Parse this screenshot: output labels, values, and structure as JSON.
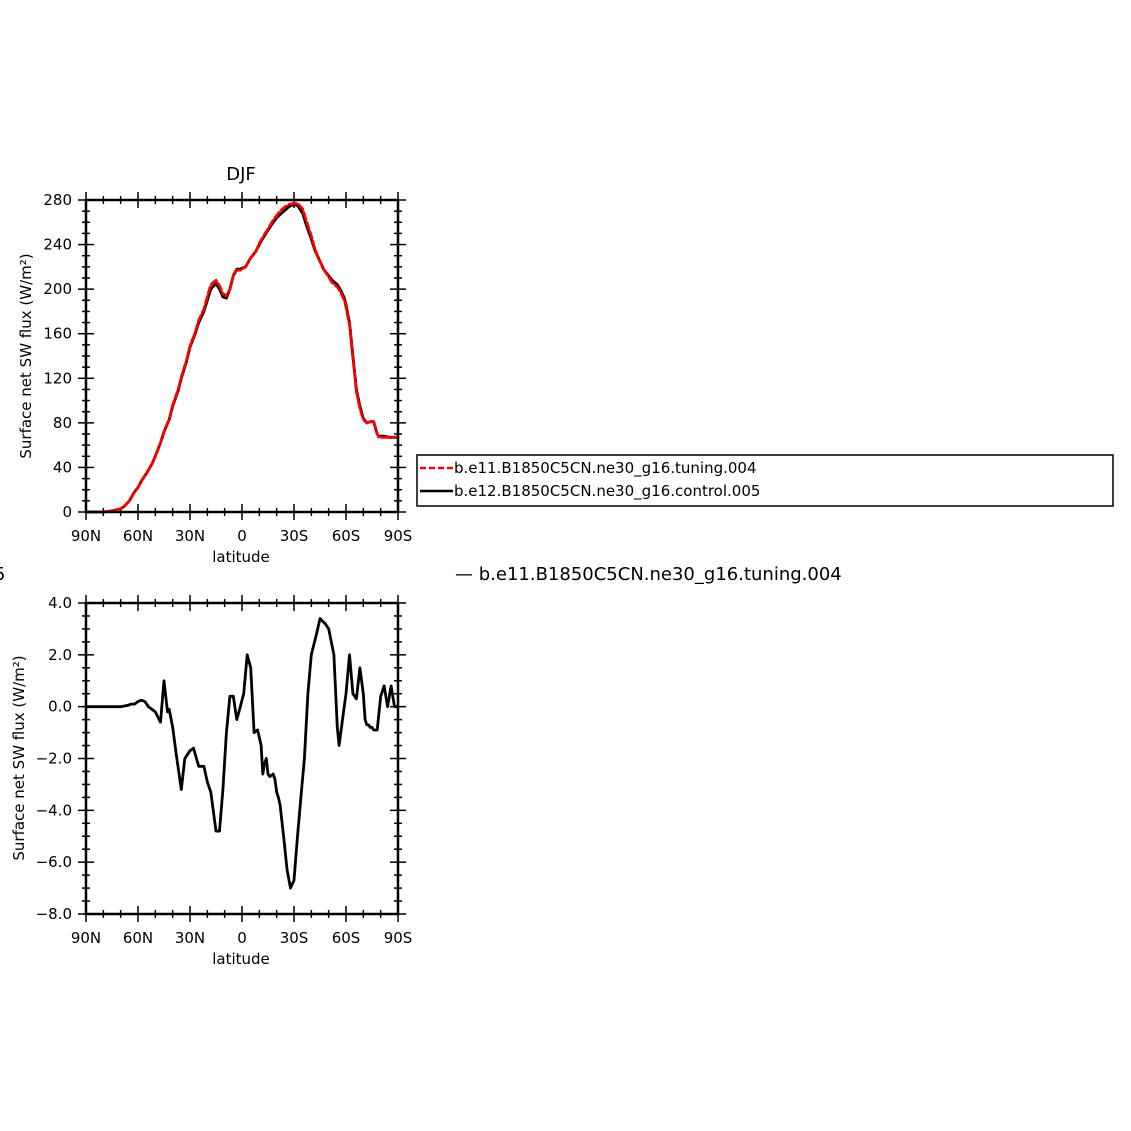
{
  "chart_data": [
    {
      "type": "line",
      "title": "DJF",
      "xlabel": "latitude",
      "ylabel": "Surface net SW flux (W/m²)",
      "xlim": [
        90,
        -90
      ],
      "ylim": [
        0,
        280
      ],
      "xticks": [
        90,
        60,
        30,
        0,
        -30,
        -60,
        -90
      ],
      "xtick_labels": [
        "90N",
        "60N",
        "30N",
        "0",
        "30S",
        "60S",
        "90S"
      ],
      "yticks": [
        0,
        40,
        80,
        120,
        160,
        200,
        240,
        280
      ],
      "ytick_labels": [
        "0",
        "40",
        "80",
        "120",
        "160",
        "200",
        "240",
        "280"
      ],
      "legend": {
        "placement": "right",
        "entries": [
          "b.e11.B1850C5CN.ne30_g16.tuning.004",
          "b.e12.B1850C5CN.ne30_g16.control.005"
        ]
      },
      "series": [
        {
          "name": "b.e12.B1850C5CN.ne30_g16.control.005",
          "color": "#000000",
          "style": "solid",
          "x": [
            90,
            80,
            75,
            70,
            68,
            65,
            62,
            60,
            58,
            55,
            52,
            50,
            47,
            45,
            42,
            40,
            37,
            35,
            32,
            30,
            27,
            25,
            22,
            20,
            18,
            15,
            13,
            11,
            9,
            7,
            5,
            3,
            1,
            -2,
            -5,
            -8,
            -10,
            -13,
            -15,
            -18,
            -20,
            -22,
            -25,
            -27,
            -30,
            -32,
            -35,
            -37,
            -40,
            -42,
            -45,
            -47,
            -50,
            -52,
            -55,
            -57,
            -59,
            -60,
            -61,
            -62,
            -63,
            -64,
            -65,
            -66,
            -68,
            -70,
            -72,
            -74,
            -76,
            -78,
            -79,
            -80,
            -82,
            -85,
            -88,
            -90
          ],
          "y": [
            0,
            0,
            1,
            3,
            5,
            10,
            18,
            22,
            28,
            35,
            43,
            50,
            62,
            72,
            83,
            95,
            108,
            120,
            135,
            148,
            160,
            170,
            180,
            190,
            200,
            205,
            200,
            193,
            192,
            200,
            212,
            218,
            218,
            220,
            228,
            234,
            240,
            248,
            253,
            260,
            264,
            267,
            271,
            274,
            276,
            275,
            268,
            258,
            245,
            235,
            225,
            218,
            212,
            208,
            204,
            199,
            192,
            186,
            178,
            170,
            155,
            140,
            125,
            110,
            95,
            84,
            80,
            81,
            81,
            70,
            68,
            68,
            68,
            67,
            67,
            67
          ]
        },
        {
          "name": "b.e11.B1850C5CN.ne30_g16.tuning.004",
          "color": "#ff0000",
          "style": "dashed",
          "x": [
            90,
            80,
            75,
            70,
            68,
            65,
            62,
            60,
            58,
            55,
            52,
            50,
            47,
            45,
            42,
            40,
            37,
            35,
            32,
            30,
            27,
            25,
            22,
            20,
            18,
            15,
            13,
            11,
            9,
            7,
            5,
            3,
            1,
            -2,
            -5,
            -8,
            -10,
            -13,
            -15,
            -18,
            -20,
            -22,
            -25,
            -27,
            -30,
            -32,
            -35,
            -37,
            -40,
            -42,
            -45,
            -47,
            -50,
            -52,
            -55,
            -57,
            -59,
            -60,
            -61,
            -62,
            -63,
            -64,
            -65,
            -66,
            -68,
            -70,
            -72,
            -74,
            -76,
            -78,
            -79,
            -80,
            -82,
            -85,
            -88,
            -90
          ],
          "y": [
            0,
            0,
            1,
            3,
            5,
            10,
            18,
            22,
            28,
            35,
            43,
            50,
            62,
            72,
            83,
            96,
            109,
            121,
            136,
            149,
            161,
            172,
            182,
            193,
            204,
            208,
            203,
            196,
            194,
            200,
            212,
            217,
            217,
            220,
            228,
            234,
            241,
            249,
            254,
            262,
            266,
            270,
            274,
            276,
            277,
            277,
            272,
            262,
            248,
            236,
            225,
            218,
            211,
            206,
            202,
            197,
            190,
            184,
            176,
            168,
            153,
            138,
            123,
            108,
            93,
            83,
            80,
            81,
            81,
            70,
            67,
            67,
            67,
            67,
            67,
            67
          ]
        }
      ]
    },
    {
      "type": "line",
      "subtitle": "— b.e11.B1850C5CN.ne30_g16.tuning.004",
      "left_fragment": "5",
      "xlabel": "latitude",
      "ylabel": "Surface net SW flux (W/m²)",
      "xlim": [
        90,
        -90
      ],
      "ylim": [
        -8,
        4
      ],
      "xticks": [
        90,
        60,
        30,
        0,
        -30,
        -60,
        -90
      ],
      "xtick_labels": [
        "90N",
        "60N",
        "30N",
        "0",
        "30S",
        "60S",
        "90S"
      ],
      "yticks": [
        4,
        2,
        0,
        -2,
        -4,
        -6,
        -8
      ],
      "ytick_labels": [
        "4.0",
        "2.0",
        "0.0",
        "−2.0",
        "−4.0",
        "−6.0",
        "−8.0"
      ],
      "series": [
        {
          "color": "#000000",
          "style": "solid",
          "x": [
            90,
            70,
            66,
            64,
            62,
            60,
            58,
            56,
            54,
            52,
            50,
            47,
            45,
            43,
            42,
            40,
            38,
            35,
            33,
            30,
            28,
            25,
            22,
            20,
            18,
            15,
            13,
            11,
            9,
            7,
            5,
            3,
            1,
            -1,
            -3,
            -5,
            -7,
            -9,
            -11,
            -12,
            -13,
            -14,
            -15,
            -16,
            -18,
            -19,
            -20,
            -21,
            -22,
            -24,
            -26,
            -28,
            -30,
            -32,
            -34,
            -36,
            -38,
            -40,
            -43,
            -45,
            -48,
            -50,
            -53,
            -55,
            -56,
            -58,
            -60,
            -62,
            -64,
            -66,
            -68,
            -70,
            -71,
            -72,
            -73,
            -74,
            -75,
            -76,
            -78,
            -80,
            -82,
            -84,
            -86,
            -88,
            -90
          ],
          "y": [
            0,
            0,
            0.05,
            0.1,
            0.1,
            0.2,
            0.25,
            0.2,
            0.0,
            -0.1,
            -0.2,
            -0.6,
            1.0,
            -0.2,
            -0.1,
            -0.8,
            -1.8,
            -3.2,
            -2.0,
            -1.7,
            -1.6,
            -2.3,
            -2.3,
            -2.9,
            -3.3,
            -4.8,
            -4.8,
            -3.2,
            -1.0,
            0.4,
            0.4,
            -0.5,
            0.0,
            0.5,
            2.0,
            1.5,
            -1.0,
            -0.9,
            -1.5,
            -2.6,
            -2.2,
            -2.0,
            -2.6,
            -2.7,
            -2.6,
            -2.8,
            -3.3,
            -3.5,
            -3.8,
            -5.0,
            -6.3,
            -7.0,
            -6.7,
            -5.0,
            -3.5,
            -2.0,
            0.5,
            2.0,
            2.8,
            3.4,
            3.2,
            3.0,
            2.0,
            -0.8,
            -1.5,
            -0.5,
            0.5,
            2.0,
            0.5,
            0.3,
            1.5,
            0.5,
            -0.5,
            -0.7,
            -0.7,
            -0.8,
            -0.8,
            -0.9,
            -0.9,
            0.4,
            0.8,
            0.0,
            0.8,
            0.0,
            0.0
          ]
        }
      ]
    }
  ]
}
